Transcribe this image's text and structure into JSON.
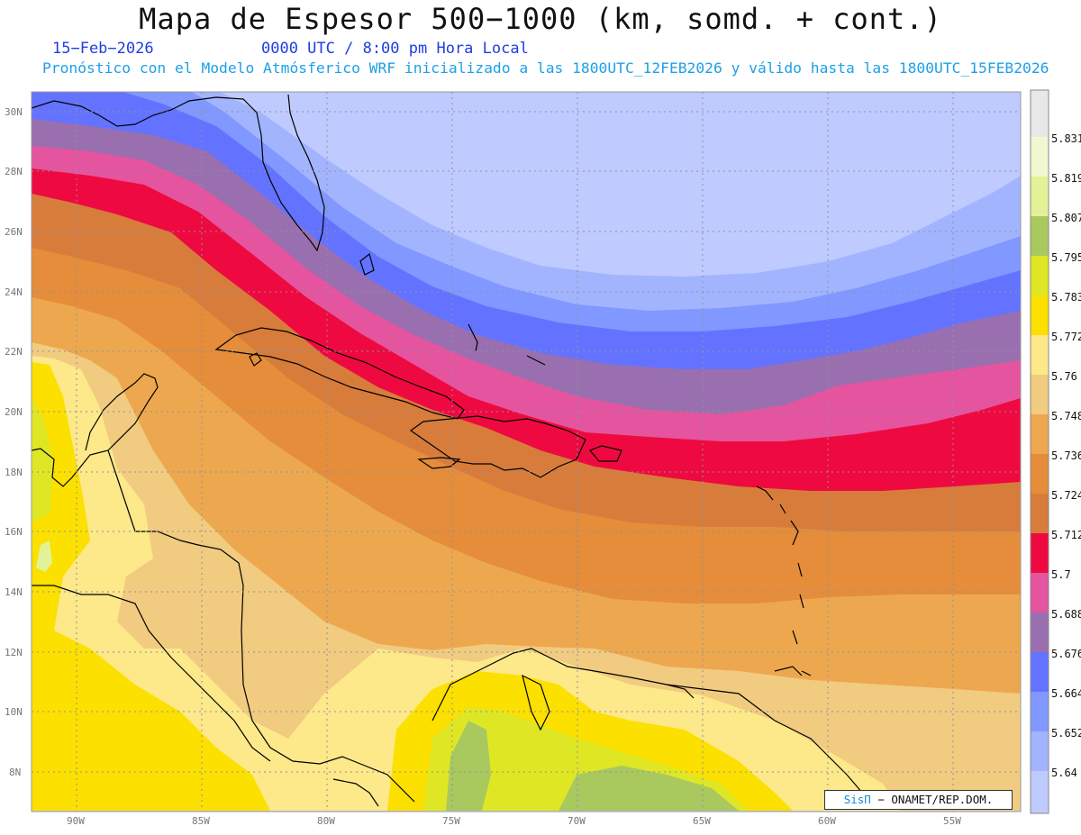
{
  "header": {
    "title": "Mapa de Espesor 500−1000 (km, somd. + cont.)",
    "date": "15−Feb−2026",
    "time": "0000 UTC / 8:00 pm Hora Local",
    "forecast": "Pronóstico con el Modelo Atmósferico WRF inicializado a las 1800UTC_12FEB2026 y válido hasta las  1800UTC_15FEB2026"
  },
  "map": {
    "lat_labels": [
      "30N",
      "28N",
      "26N",
      "24N",
      "22N",
      "20N",
      "18N",
      "16N",
      "14N",
      "12N",
      "10N",
      "8N"
    ],
    "lon_labels": [
      "90W",
      "85W",
      "80W",
      "75W",
      "70W",
      "65W",
      "60W",
      "55W"
    ],
    "lat_range": [
      6.7,
      30.7
    ],
    "lon_range": [
      -91.8,
      -52.5
    ]
  },
  "colorbar": {
    "levels": [
      "5.64",
      "5.652",
      "5.664",
      "5.676",
      "5.688",
      "5.7",
      "5.712",
      "5.724",
      "5.736",
      "5.748",
      "5.76",
      "5.772",
      "5.783",
      "5.795",
      "5.807",
      "5.819",
      "5.831"
    ],
    "colors": [
      "#bfcbff",
      "#a3b4ff",
      "#8098ff",
      "#6473ff",
      "#9a6fb0",
      "#e4549f",
      "#ee0a40",
      "#d87c3c",
      "#e58d3a",
      "#eda84f",
      "#f1cb80",
      "#fde88a",
      "#fbe000",
      "#dfe724",
      "#a9c95f",
      "#e2f397",
      "#f0f8d2",
      "#e8e8e8"
    ]
  },
  "credit": {
    "brand": "SisΠ",
    "text": "− ONAMET/REP.DOM."
  }
}
